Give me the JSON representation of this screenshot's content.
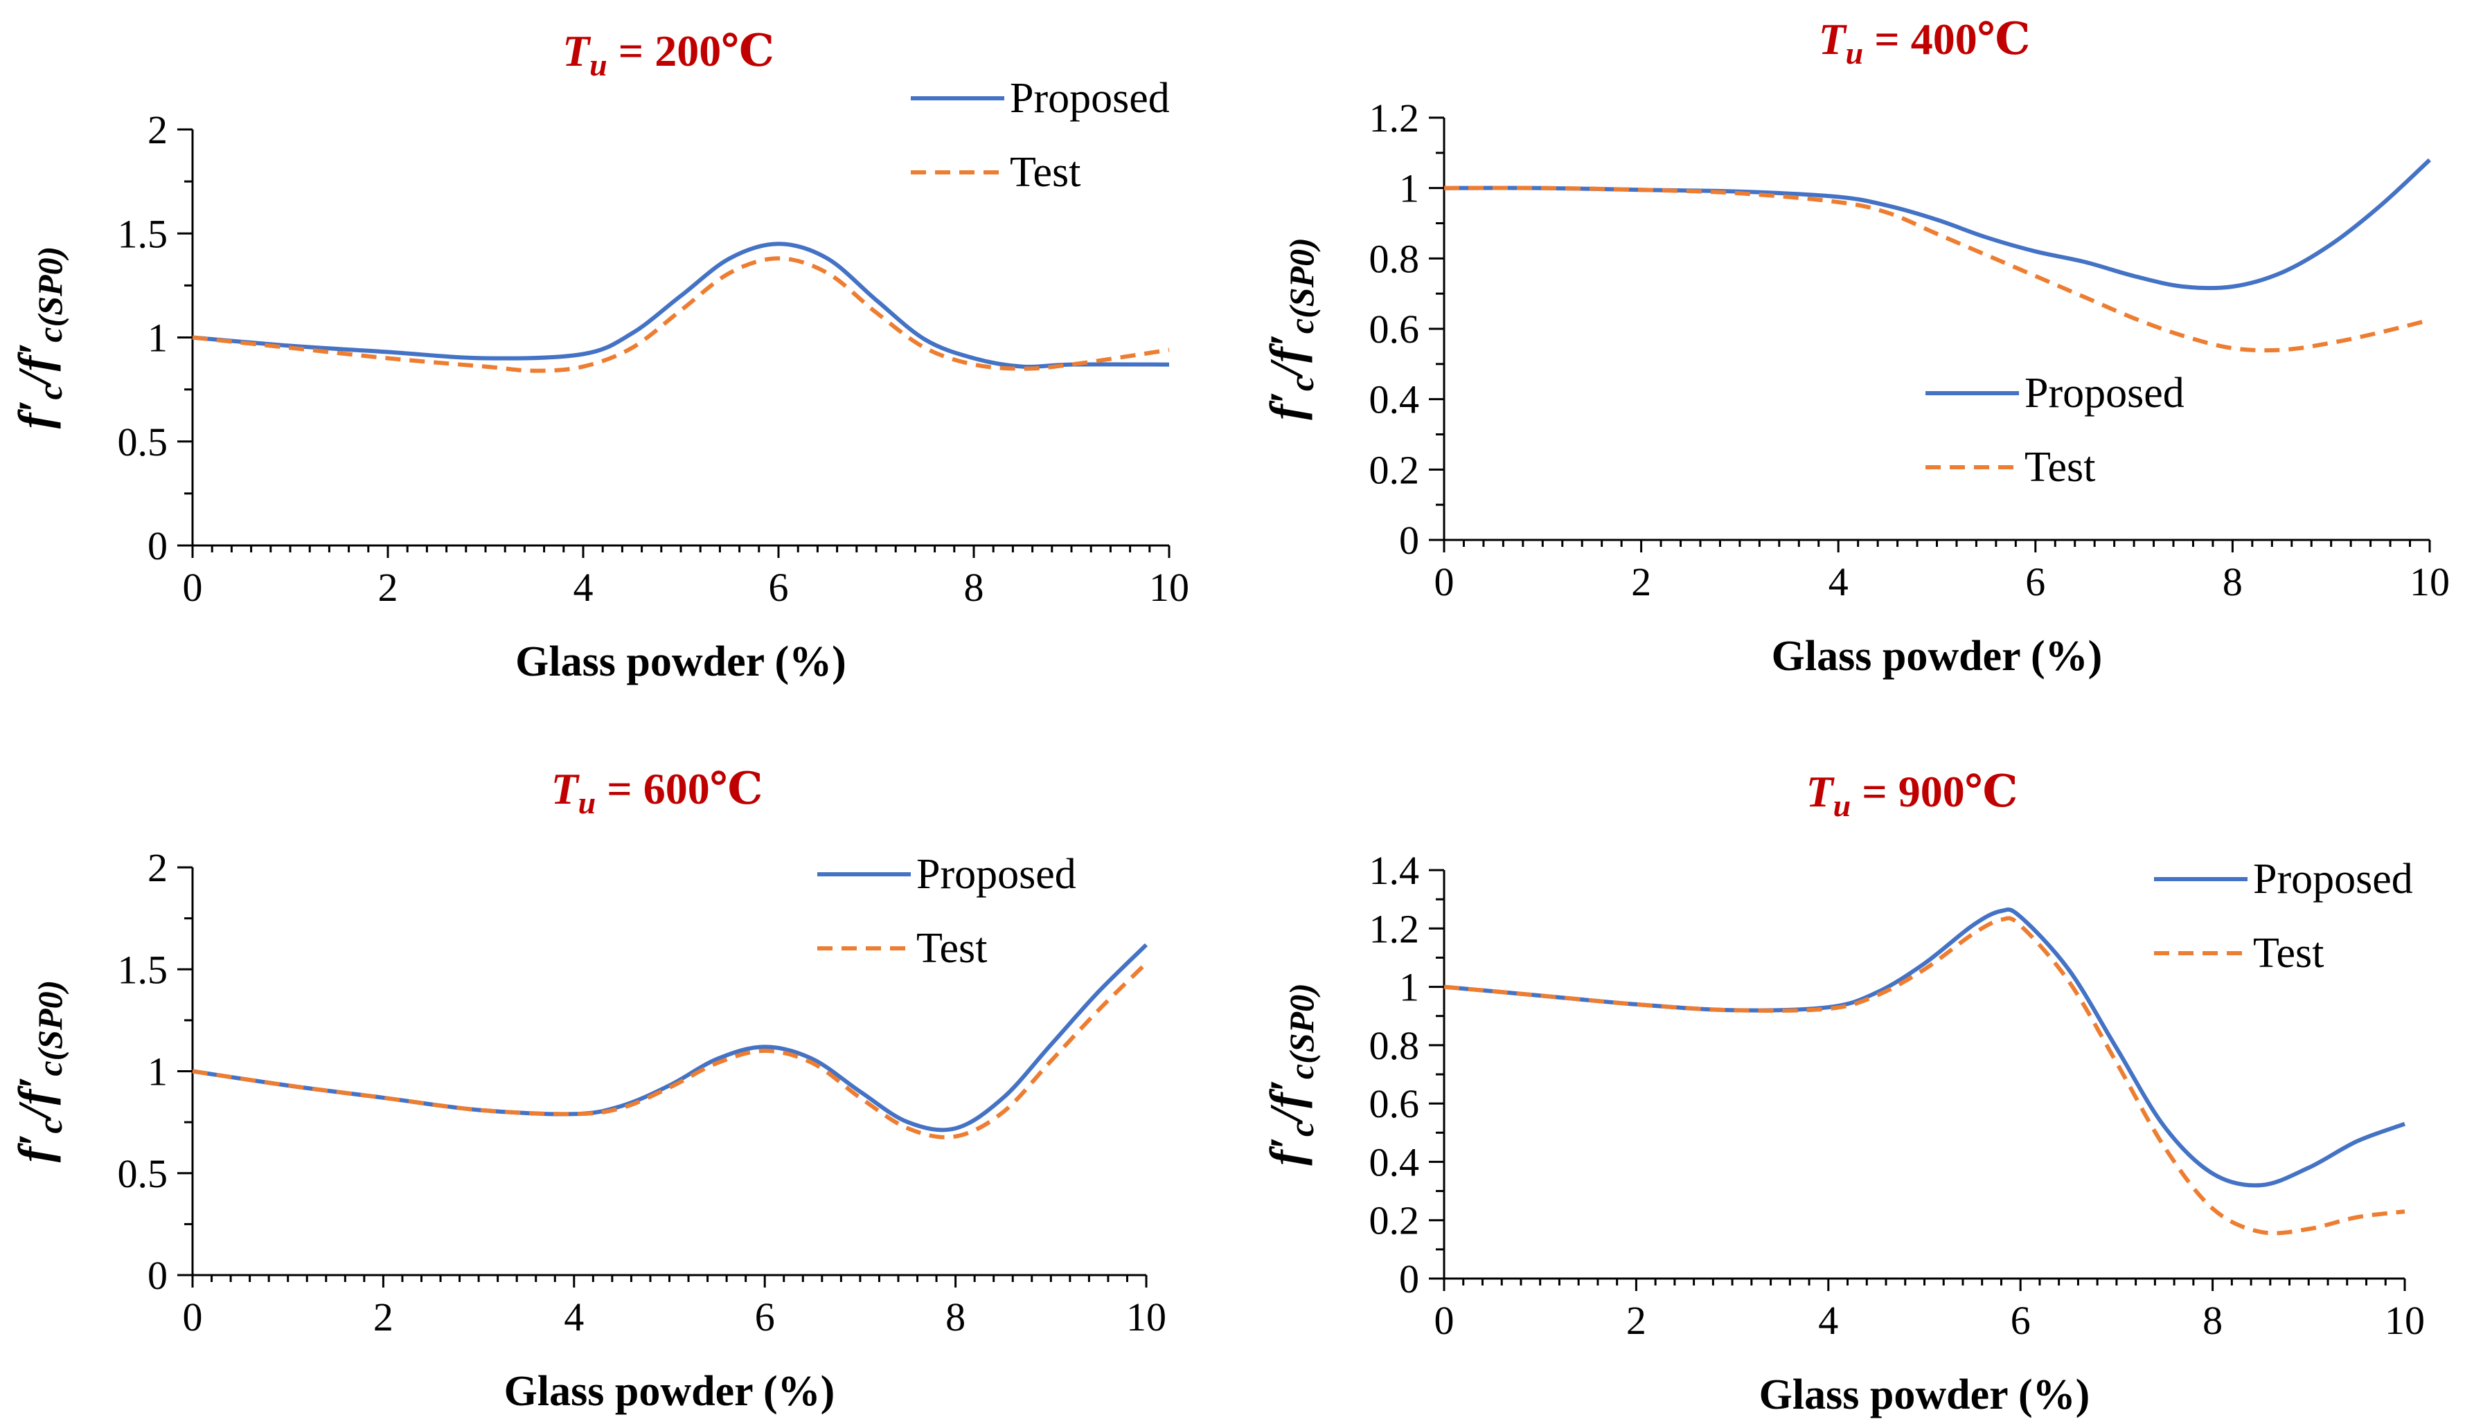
{
  "colors": {
    "proposed": "#4472c4",
    "test": "#ed7d31",
    "title": "#c00000"
  },
  "chart_data": [
    {
      "type": "line",
      "title": {
        "symbol": "T",
        "subscript": "u",
        "rest": " = 200℃"
      },
      "xlabel": "Glass powder (%)",
      "ylabel": {
        "f": "f",
        "c1": "c",
        "sep": "/",
        "c2": "c(SP0)"
      },
      "xlim": [
        0,
        10
      ],
      "ylim": [
        0,
        2
      ],
      "xticks": [
        "0",
        "2",
        "4",
        "6",
        "8",
        "10"
      ],
      "yticks": [
        "0",
        "0.5",
        "1",
        "1.5",
        "2"
      ],
      "ytick_values": [
        0,
        0.5,
        1,
        1.5,
        2
      ],
      "legend": "top-right",
      "series": [
        {
          "name": "Proposed",
          "style": "solid",
          "x": [
            0,
            1,
            2,
            3,
            4,
            4.5,
            5,
            5.5,
            6,
            6.5,
            7,
            7.5,
            8,
            8.5,
            9,
            10
          ],
          "y": [
            1,
            0.96,
            0.93,
            0.9,
            0.92,
            1.02,
            1.2,
            1.38,
            1.45,
            1.38,
            1.18,
            0.99,
            0.9,
            0.86,
            0.87,
            0.87
          ]
        },
        {
          "name": "Test",
          "style": "dashed",
          "x": [
            0,
            1,
            2,
            3,
            3.5,
            4,
            4.5,
            5,
            5.5,
            6,
            6.5,
            7,
            7.5,
            8,
            8.5,
            9,
            10
          ],
          "y": [
            1,
            0.95,
            0.9,
            0.86,
            0.84,
            0.86,
            0.95,
            1.13,
            1.31,
            1.38,
            1.31,
            1.12,
            0.95,
            0.87,
            0.85,
            0.87,
            0.94
          ]
        }
      ]
    },
    {
      "type": "line",
      "title": {
        "symbol": "T",
        "subscript": "u",
        "rest": " = 400℃"
      },
      "xlabel": "Glass powder (%)",
      "ylabel": {
        "f": "f",
        "c1": "c",
        "sep": "/",
        "c2": "c(SP0)"
      },
      "xlim": [
        0,
        10
      ],
      "ylim": [
        0,
        1.2
      ],
      "xticks": [
        "0",
        "2",
        "4",
        "6",
        "8",
        "10"
      ],
      "yticks": [
        "0",
        "0.2",
        "0.4",
        "0.6",
        "0.8",
        "1",
        "1.2"
      ],
      "ytick_values": [
        0,
        0.2,
        0.4,
        0.6,
        0.8,
        1,
        1.2
      ],
      "legend": "center-right",
      "series": [
        {
          "name": "Proposed",
          "style": "solid",
          "x": [
            0,
            1,
            2,
            3,
            4,
            4.5,
            5,
            5.5,
            6,
            6.5,
            7,
            7.5,
            8,
            8.5,
            9,
            9.5,
            10
          ],
          "y": [
            1,
            1,
            0.995,
            0.99,
            0.975,
            0.95,
            0.91,
            0.86,
            0.82,
            0.79,
            0.75,
            0.72,
            0.72,
            0.76,
            0.84,
            0.95,
            1.08
          ]
        },
        {
          "name": "Test",
          "style": "dashed",
          "x": [
            0,
            1,
            2,
            3,
            4,
            4.5,
            5,
            5.5,
            6,
            6.5,
            7,
            7.5,
            8,
            8.5,
            9,
            9.5,
            10
          ],
          "y": [
            1,
            1,
            0.995,
            0.985,
            0.96,
            0.93,
            0.87,
            0.81,
            0.75,
            0.69,
            0.63,
            0.58,
            0.545,
            0.54,
            0.56,
            0.59,
            0.625
          ]
        }
      ]
    },
    {
      "type": "line",
      "title": {
        "symbol": "T",
        "subscript": "u",
        "rest": " = 600℃"
      },
      "xlabel": "Glass powder (%)",
      "ylabel": {
        "f": "f",
        "c1": "c",
        "sep": "/",
        "c2": "c(SP0)"
      },
      "xlim": [
        0,
        10
      ],
      "ylim": [
        0,
        2
      ],
      "xticks": [
        "0",
        "2",
        "4",
        "6",
        "8",
        "10"
      ],
      "yticks": [
        "0",
        "0.5",
        "1",
        "1.5",
        "2"
      ],
      "ytick_values": [
        0,
        0.5,
        1,
        1.5,
        2
      ],
      "legend": "top-right",
      "series": [
        {
          "name": "Proposed",
          "style": "solid",
          "x": [
            0,
            1,
            2,
            3,
            4,
            4.5,
            5,
            5.5,
            6,
            6.5,
            7,
            7.5,
            8,
            8.5,
            9,
            9.5,
            10
          ],
          "y": [
            1,
            0.93,
            0.87,
            0.81,
            0.79,
            0.83,
            0.93,
            1.06,
            1.12,
            1.06,
            0.9,
            0.75,
            0.72,
            0.87,
            1.13,
            1.39,
            1.62
          ]
        },
        {
          "name": "Test",
          "style": "dashed",
          "x": [
            0,
            1,
            2,
            3,
            4,
            4.5,
            5,
            5.5,
            6,
            6.5,
            7,
            7.5,
            8,
            8.5,
            9,
            9.5,
            10
          ],
          "y": [
            1,
            0.93,
            0.87,
            0.81,
            0.79,
            0.82,
            0.92,
            1.04,
            1.1,
            1.04,
            0.87,
            0.72,
            0.68,
            0.8,
            1.05,
            1.3,
            1.53
          ]
        }
      ]
    },
    {
      "type": "line",
      "title": {
        "symbol": "T",
        "subscript": "u",
        "rest": " = 900℃"
      },
      "xlabel": "Glass powder (%)",
      "ylabel": {
        "f": "f",
        "c1": "c",
        "sep": "/",
        "c2": "c(SP0)"
      },
      "xlim": [
        0,
        10
      ],
      "ylim": [
        0,
        1.4
      ],
      "xticks": [
        "0",
        "2",
        "4",
        "6",
        "8",
        "10"
      ],
      "yticks": [
        "0",
        "0.2",
        "0.4",
        "0.6",
        "0.8",
        "1",
        "1.2",
        "1.4"
      ],
      "ytick_values": [
        0,
        0.2,
        0.4,
        0.6,
        0.8,
        1,
        1.2,
        1.4
      ],
      "legend": "top-right",
      "series": [
        {
          "name": "Proposed",
          "style": "solid",
          "x": [
            0,
            1,
            2,
            3,
            4,
            4.5,
            5,
            5.5,
            5.8,
            6,
            6.5,
            7,
            7.5,
            8,
            8.5,
            9,
            9.5,
            10
          ],
          "y": [
            1,
            0.97,
            0.94,
            0.92,
            0.93,
            0.98,
            1.08,
            1.21,
            1.26,
            1.24,
            1.06,
            0.79,
            0.52,
            0.36,
            0.32,
            0.38,
            0.47,
            0.53
          ]
        },
        {
          "name": "Test",
          "style": "dashed",
          "x": [
            0,
            1,
            2,
            3,
            4,
            4.5,
            5,
            5.5,
            5.8,
            6,
            6.5,
            7,
            7.5,
            8,
            8.5,
            9,
            9.5,
            10
          ],
          "y": [
            1,
            0.97,
            0.94,
            0.92,
            0.925,
            0.97,
            1.06,
            1.18,
            1.23,
            1.21,
            1.02,
            0.74,
            0.45,
            0.24,
            0.16,
            0.17,
            0.21,
            0.23
          ]
        }
      ]
    }
  ]
}
